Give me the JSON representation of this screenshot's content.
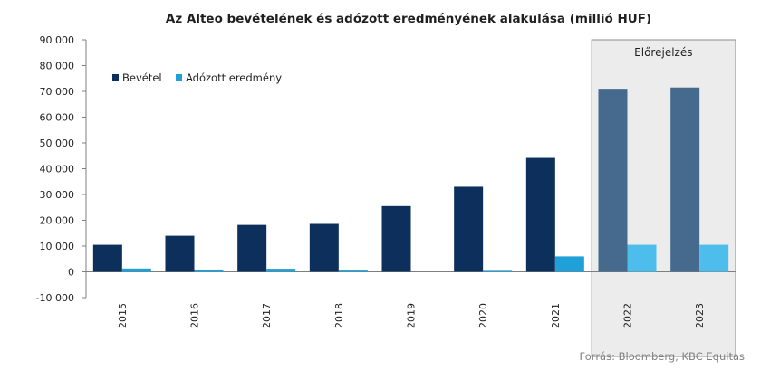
{
  "chart_data": {
    "type": "bar",
    "title": "Az Alteo bevételének és adózott eredményének alakulása (millió HUF)",
    "categories": [
      "2015",
      "2016",
      "2017",
      "2018",
      "2019",
      "2020",
      "2021",
      "2022",
      "2023"
    ],
    "series": [
      {
        "name": "Bevétel",
        "values": [
          10500,
          14000,
          18200,
          18600,
          25500,
          33000,
          44200,
          71000,
          71500
        ]
      },
      {
        "name": "Adózott eredmény",
        "values": [
          1300,
          900,
          1200,
          500,
          0,
          400,
          6000,
          10500,
          10500
        ]
      }
    ],
    "ylim": [
      -10000,
      90000
    ],
    "yticks": [
      "-10 000",
      "0",
      "10 000",
      "20 000",
      "30 000",
      "40 000",
      "50 000",
      "60 000",
      "70 000",
      "80 000",
      "90 000"
    ],
    "ytick_values": [
      -10000,
      0,
      10000,
      20000,
      30000,
      40000,
      50000,
      60000,
      70000,
      80000,
      90000
    ],
    "forecast_label": "Előrejelzés",
    "forecast_categories": [
      "2022",
      "2023"
    ],
    "legend_position": "top-left",
    "grid": false,
    "colors": {
      "revenue": "#0d2f5c",
      "profit": "#1fa0d9",
      "revenue_forecast": "#456a8e",
      "profit_forecast": "#4dbdeb",
      "forecast_bg": "#ececec",
      "forecast_border": "#8c8c8c"
    }
  },
  "source": "Forrás: Bloomberg, KBC Equitas"
}
